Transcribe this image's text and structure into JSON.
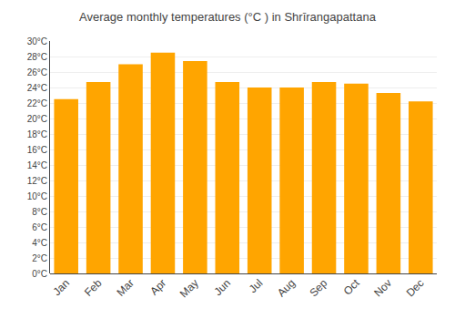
{
  "chart_data": {
    "type": "bar",
    "title": "Average monthly temperatures (°C ) in Shrīrangapattana",
    "categories": [
      "Jan",
      "Feb",
      "Mar",
      "Apr",
      "May",
      "Jun",
      "Jul",
      "Aug",
      "Sep",
      "Oct",
      "Nov",
      "Dec"
    ],
    "values": [
      22.5,
      24.7,
      27.0,
      28.5,
      27.4,
      24.7,
      24.0,
      24.0,
      24.7,
      24.5,
      23.3,
      22.2
    ],
    "color": "#FFA500",
    "ylim": [
      0,
      30
    ],
    "yticks": [
      {
        "value": 0,
        "label": "0°C"
      },
      {
        "value": 2,
        "label": "2°C"
      },
      {
        "value": 4,
        "label": "4°C"
      },
      {
        "value": 6,
        "label": "6°C"
      },
      {
        "value": 8,
        "label": "8°C"
      },
      {
        "value": 10,
        "label": "10°C"
      },
      {
        "value": 12,
        "label": "12°C"
      },
      {
        "value": 14,
        "label": "14°C"
      },
      {
        "value": 16,
        "label": "16°C"
      },
      {
        "value": 18,
        "label": "18°C"
      },
      {
        "value": 20,
        "label": "20°C"
      },
      {
        "value": 22,
        "label": "22°C"
      },
      {
        "value": 24,
        "label": "24°C"
      },
      {
        "value": 26,
        "label": "26°C"
      },
      {
        "value": 28,
        "label": "28°C"
      },
      {
        "value": 30,
        "label": "30°C"
      }
    ],
    "grid": true
  }
}
